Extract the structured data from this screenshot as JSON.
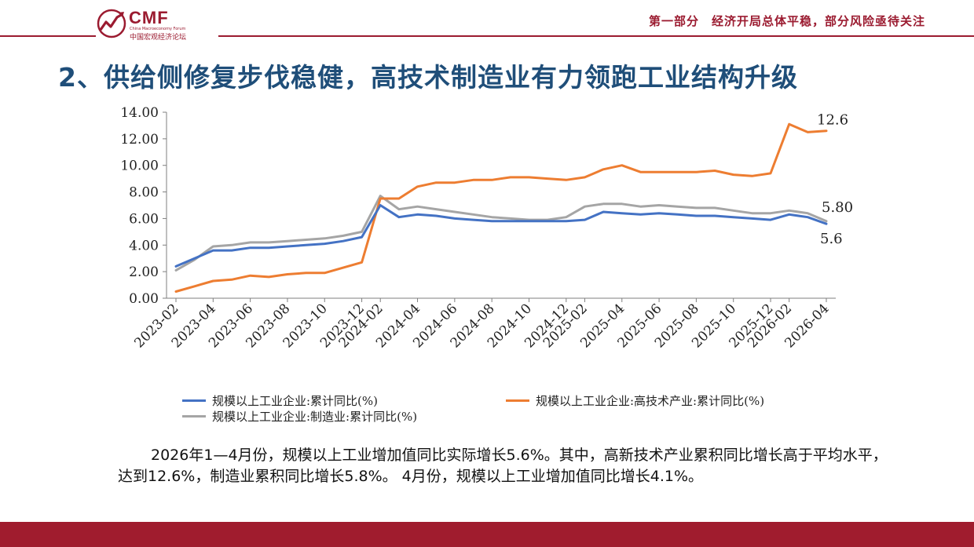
{
  "header": {
    "logo_text": "CMF",
    "logo_subtitle_en": "China Macroeconomy Forum",
    "logo_subtitle_cn": "中国宏观经济论坛",
    "section_label": "第一部分　经济开局总体平稳，部分风险亟待关注"
  },
  "slide": {
    "title": "2、供给侧修复步伐稳健，高技术制造业有力领跑工业结构升级",
    "body": "2026年1—4月份，规模以上工业增加值同比实际增长5.6%。其中，高新技术产业累积同比增长高于平均水平，达到12.6%，制造业累积同比增长5.8%。 4月份，规模以上工业增加值同比增长4.1%。"
  },
  "colors": {
    "brand": "#9b1b30",
    "title": "#1f4e79"
  },
  "chart_data": {
    "type": "line",
    "title": "",
    "xlabel": "",
    "ylabel": "",
    "ylim": [
      0,
      14
    ],
    "yticks": [
      "0.00",
      "2.00",
      "4.00",
      "6.00",
      "8.00",
      "10.00",
      "12.00",
      "14.00"
    ],
    "x": [
      "2023-02",
      "2023-03",
      "2023-04",
      "2023-05",
      "2023-06",
      "2023-07",
      "2023-08",
      "2023-09",
      "2023-10",
      "2023-11",
      "2023-12",
      "2024-02",
      "2024-03",
      "2024-04",
      "2024-05",
      "2024-06",
      "2024-07",
      "2024-08",
      "2024-09",
      "2024-10",
      "2024-11",
      "2024-12",
      "2025-02",
      "2025-03",
      "2025-04",
      "2025-05",
      "2025-06",
      "2025-07",
      "2025-08",
      "2025-09",
      "2025-10",
      "2025-11",
      "2025-12",
      "2026-02",
      "2026-03",
      "2026-04"
    ],
    "xtick_labels": [
      "2023-02",
      "2023-04",
      "2023-06",
      "2023-08",
      "2023-10",
      "2023-12",
      "2024-02",
      "2024-04",
      "2024-06",
      "2024-08",
      "2024-10",
      "2024-12",
      "2025-02",
      "2025-04",
      "2025-06",
      "2025-08",
      "2025-10",
      "2025-12",
      "2026-02",
      "2026-04"
    ],
    "series": [
      {
        "name": "规模以上工业企业:累计同比(%)",
        "color": "#4472c4",
        "values": [
          2.4,
          3.0,
          3.6,
          3.6,
          3.8,
          3.8,
          3.9,
          4.0,
          4.1,
          4.3,
          4.6,
          7.0,
          6.1,
          6.3,
          6.2,
          6.0,
          5.9,
          5.8,
          5.8,
          5.8,
          5.8,
          5.8,
          5.9,
          6.5,
          6.4,
          6.3,
          6.4,
          6.3,
          6.2,
          6.2,
          6.1,
          6.0,
          5.9,
          6.3,
          6.1,
          5.6
        ],
        "end_label": "5.6"
      },
      {
        "name": "规模以上工业企业:高技术产业:累计同比(%)",
        "color": "#ed7d31",
        "values": [
          0.5,
          0.9,
          1.3,
          1.4,
          1.7,
          1.6,
          1.8,
          1.9,
          1.9,
          2.3,
          2.7,
          7.5,
          7.5,
          8.4,
          8.7,
          8.7,
          8.9,
          8.9,
          9.1,
          9.1,
          9.0,
          8.9,
          9.1,
          9.7,
          10.0,
          9.5,
          9.5,
          9.5,
          9.5,
          9.6,
          9.3,
          9.2,
          9.4,
          13.1,
          12.5,
          12.6
        ],
        "end_label": "12.6"
      },
      {
        "name": "规模以上工业企业:制造业:累计同比(%)",
        "color": "#a5a5a5",
        "values": [
          2.1,
          2.9,
          3.9,
          4.0,
          4.2,
          4.2,
          4.3,
          4.4,
          4.5,
          4.7,
          5.0,
          7.7,
          6.7,
          6.9,
          6.7,
          6.5,
          6.3,
          6.1,
          6.0,
          5.9,
          5.9,
          6.1,
          6.9,
          7.1,
          7.1,
          6.9,
          7.0,
          6.9,
          6.8,
          6.8,
          6.6,
          6.4,
          6.4,
          6.6,
          6.4,
          5.8
        ],
        "end_label": "5.80"
      }
    ]
  }
}
